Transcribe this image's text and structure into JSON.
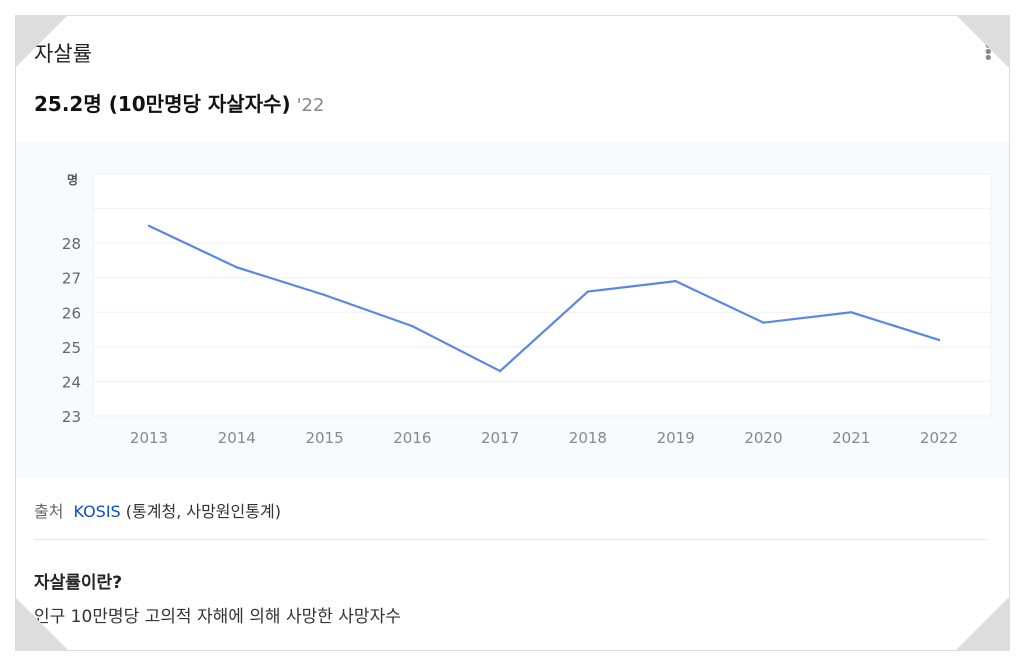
{
  "card": {
    "title": "자살률",
    "headline_value": "25.2명 (10만명당 자살자수)",
    "headline_year": "'22",
    "more_icon": "more-vertical-icon"
  },
  "source": {
    "label": "출처",
    "link": "KOSIS",
    "detail": "(통계청, 사망원인통계)"
  },
  "definition": {
    "question": "자살률이란?",
    "answer": "인구 10만명당 고의적 자해에 의해 사망한 사망자수"
  },
  "chart_data": {
    "type": "line",
    "ylabel": "명",
    "x": [
      "2013",
      "2014",
      "2015",
      "2016",
      "2017",
      "2018",
      "2019",
      "2020",
      "2021",
      "2022"
    ],
    "series": [
      {
        "name": "자살률",
        "color": "#5b86e5",
        "values": [
          28.5,
          27.3,
          26.5,
          25.6,
          24.3,
          26.6,
          26.9,
          25.7,
          26.0,
          25.2
        ]
      }
    ],
    "ylim": [
      23,
      30
    ],
    "yticks": [
      23,
      24,
      25,
      26,
      27,
      28
    ],
    "grid": true
  }
}
